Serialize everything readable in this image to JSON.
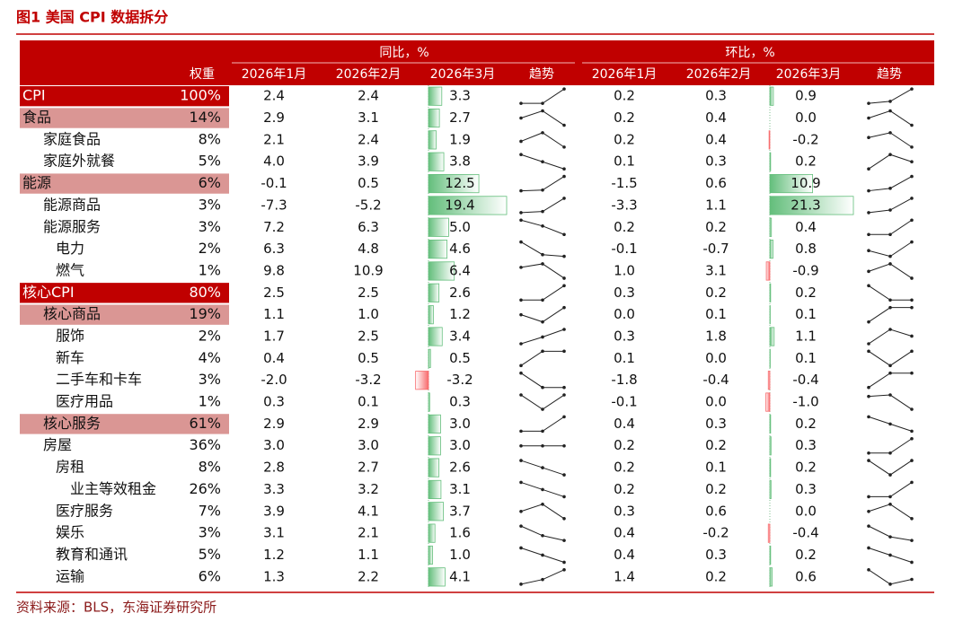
{
  "header": {
    "title": "图1 美国 CPI 数据拆分",
    "groups": [
      "同比，%",
      "环比，%"
    ],
    "columns": [
      "权重",
      "2026年1月",
      "2026年2月",
      "2026年3月",
      "趋势",
      "2026年1月",
      "2026年2月",
      "2026年3月",
      "趋势"
    ]
  },
  "table": {
    "rows": [
      {
        "name": "CPI",
        "weight": "100%",
        "yoy": [
          "2.4",
          "2.4",
          "3.3"
        ],
        "mom": [
          "0.2",
          "0.3",
          "0.9"
        ]
      },
      {
        "name": "食品",
        "weight": "14%",
        "yoy": [
          "2.9",
          "3.1",
          "2.7"
        ],
        "mom": [
          "0.2",
          "0.4",
          "0.0"
        ]
      },
      {
        "name": "家庭食品",
        "weight": "8%",
        "yoy": [
          "2.1",
          "2.4",
          "1.9"
        ],
        "mom": [
          "0.2",
          "0.4",
          "-0.2"
        ]
      },
      {
        "name": "家庭外就餐",
        "weight": "5%",
        "yoy": [
          "4.0",
          "3.9",
          "3.8"
        ],
        "mom": [
          "0.1",
          "0.3",
          "0.2"
        ]
      },
      {
        "name": "能源",
        "weight": "6%",
        "yoy": [
          "-0.1",
          "0.5",
          "12.5"
        ],
        "mom": [
          "-1.5",
          "0.6",
          "10.9"
        ]
      },
      {
        "name": "能源商品",
        "weight": "3%",
        "yoy": [
          "-7.3",
          "-5.2",
          "19.4"
        ],
        "mom": [
          "-3.3",
          "1.1",
          "21.3"
        ]
      },
      {
        "name": "能源服务",
        "weight": "3%",
        "yoy": [
          "7.2",
          "6.3",
          "5.0"
        ],
        "mom": [
          "0.2",
          "0.2",
          "0.4"
        ]
      },
      {
        "name": "电力",
        "weight": "2%",
        "yoy": [
          "6.3",
          "4.8",
          "4.6"
        ],
        "mom": [
          "-0.1",
          "-0.7",
          "0.8"
        ]
      },
      {
        "name": "燃气",
        "weight": "1%",
        "yoy": [
          "9.8",
          "10.9",
          "6.4"
        ],
        "mom": [
          "1.0",
          "3.1",
          "-0.9"
        ]
      },
      {
        "name": "核心CPI",
        "weight": "80%",
        "yoy": [
          "2.5",
          "2.5",
          "2.6"
        ],
        "mom": [
          "0.3",
          "0.2",
          "0.2"
        ]
      },
      {
        "name": "核心商品",
        "weight": "19%",
        "yoy": [
          "1.1",
          "1.0",
          "1.2"
        ],
        "mom": [
          "0.0",
          "0.1",
          "0.1"
        ]
      },
      {
        "name": "服饰",
        "weight": "2%",
        "yoy": [
          "1.7",
          "2.5",
          "3.4"
        ],
        "mom": [
          "0.3",
          "1.8",
          "1.1"
        ]
      },
      {
        "name": "新车",
        "weight": "4%",
        "yoy": [
          "0.4",
          "0.5",
          "0.5"
        ],
        "mom": [
          "0.1",
          "0.0",
          "0.1"
        ]
      },
      {
        "name": "二手车和卡车",
        "weight": "3%",
        "yoy": [
          "-2.0",
          "-3.2",
          "-3.2"
        ],
        "mom": [
          "-1.8",
          "-0.4",
          "-0.4"
        ]
      },
      {
        "name": "医疗用品",
        "weight": "1%",
        "yoy": [
          "0.3",
          "0.1",
          "0.3"
        ],
        "mom": [
          "-0.1",
          "0.0",
          "-1.0"
        ]
      },
      {
        "name": "核心服务",
        "weight": "61%",
        "yoy": [
          "2.9",
          "2.9",
          "3.0"
        ],
        "mom": [
          "0.4",
          "0.3",
          "0.2"
        ]
      },
      {
        "name": "房屋",
        "weight": "36%",
        "yoy": [
          "3.0",
          "3.0",
          "3.0"
        ],
        "mom": [
          "0.2",
          "0.2",
          "0.3"
        ]
      },
      {
        "name": "房租",
        "weight": "8%",
        "yoy": [
          "2.8",
          "2.7",
          "2.6"
        ],
        "mom": [
          "0.2",
          "0.1",
          "0.2"
        ]
      },
      {
        "name": "业主等效租金",
        "weight": "26%",
        "yoy": [
          "3.3",
          "3.2",
          "3.1"
        ],
        "mom": [
          "0.2",
          "0.2",
          "0.3"
        ]
      },
      {
        "name": "医疗服务",
        "weight": "7%",
        "yoy": [
          "3.9",
          "4.1",
          "3.7"
        ],
        "mom": [
          "0.3",
          "0.6",
          "0.0"
        ]
      },
      {
        "name": "娱乐",
        "weight": "3%",
        "yoy": [
          "3.1",
          "2.1",
          "1.6"
        ],
        "mom": [
          "0.4",
          "-0.2",
          "-0.4"
        ]
      },
      {
        "name": "教育和通讯",
        "weight": "5%",
        "yoy": [
          "1.2",
          "1.1",
          "1.0"
        ],
        "mom": [
          "0.4",
          "0.3",
          "0.2"
        ]
      },
      {
        "name": "运输",
        "weight": "6%",
        "yoy": [
          "1.3",
          "2.2",
          "4.1"
        ],
        "mom": [
          "1.4",
          "0.2",
          "0.6"
        ]
      }
    ]
  },
  "source": "资料来源：BLS，东海证券研究所"
}
